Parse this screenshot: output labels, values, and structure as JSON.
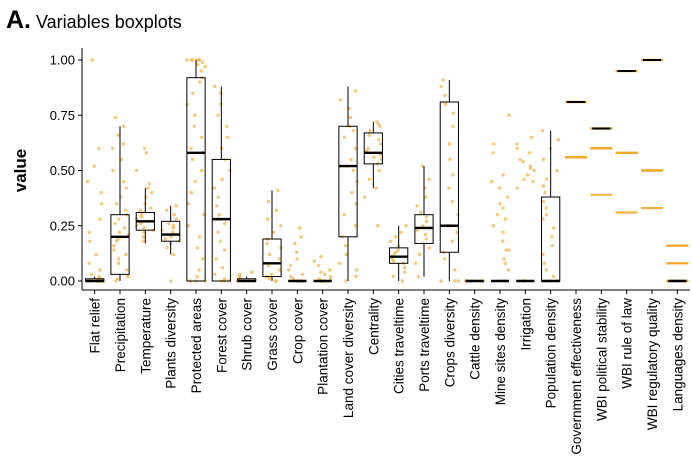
{
  "panel": {
    "letter": "A.",
    "title": "Variables boxplots"
  },
  "colors": {
    "points": "#f5b041",
    "box": "#000000",
    "median": "#000000",
    "constant_line": "#f5a623"
  },
  "chart_data": {
    "type": "boxplot",
    "title": "",
    "ylabel": "value",
    "xlabel": "",
    "ylim": [
      0,
      1
    ],
    "yticks": [
      0.0,
      0.25,
      0.5,
      0.75,
      1.0
    ],
    "ytick_labels": [
      "0.00",
      "0.25",
      "0.50",
      "0.75",
      "1.00"
    ],
    "grid": false,
    "legend": "none",
    "categories": [
      "Flat relief",
      "Precipitation",
      "Temperature",
      "Plants diversity",
      "Protected areas",
      "Forest cover",
      "Shrub cover",
      "Grass cover",
      "Crop cover",
      "Plantation cover",
      "Land cover diversity",
      "Centrality",
      "Cities traveltime",
      "Ports traveltime",
      "Crops diversity",
      "Cattle density",
      "Mine sites density",
      "Irrigation",
      "Population density",
      "Government effectiveness",
      "WBI political stability",
      "WBI rule of law",
      "WBI regulatory quality",
      "Languages density"
    ],
    "boxes": [
      {
        "q1": 0.0,
        "median": 0.0,
        "q3": 0.01,
        "lower": 0.0,
        "upper": 0.02
      },
      {
        "q1": 0.03,
        "median": 0.2,
        "q3": 0.3,
        "lower": 0.0,
        "upper": 0.7
      },
      {
        "q1": 0.23,
        "median": 0.27,
        "q3": 0.31,
        "lower": 0.17,
        "upper": 0.42
      },
      {
        "q1": 0.18,
        "median": 0.21,
        "q3": 0.27,
        "lower": 0.12,
        "upper": 0.34
      },
      {
        "q1": 0.0,
        "median": 0.58,
        "q3": 0.92,
        "lower": 0.0,
        "upper": 1.0
      },
      {
        "q1": 0.0,
        "median": 0.28,
        "q3": 0.55,
        "lower": 0.0,
        "upper": 0.88
      },
      {
        "q1": 0.0,
        "median": 0.0,
        "q3": 0.01,
        "lower": 0.0,
        "upper": 0.02
      },
      {
        "q1": 0.02,
        "median": 0.08,
        "q3": 0.19,
        "lower": 0.0,
        "upper": 0.41
      },
      {
        "q1": 0.0,
        "median": 0.0,
        "q3": 0.0,
        "lower": 0.0,
        "upper": 0.0
      },
      {
        "q1": 0.0,
        "median": 0.0,
        "q3": 0.0,
        "lower": 0.0,
        "upper": 0.0
      },
      {
        "q1": 0.2,
        "median": 0.52,
        "q3": 0.7,
        "lower": 0.0,
        "upper": 0.88
      },
      {
        "q1": 0.53,
        "median": 0.58,
        "q3": 0.67,
        "lower": 0.42,
        "upper": 0.72
      },
      {
        "q1": 0.08,
        "median": 0.11,
        "q3": 0.15,
        "lower": 0.0,
        "upper": 0.25
      },
      {
        "q1": 0.17,
        "median": 0.24,
        "q3": 0.3,
        "lower": 0.02,
        "upper": 0.52
      },
      {
        "q1": 0.13,
        "median": 0.25,
        "q3": 0.81,
        "lower": 0.0,
        "upper": 0.91
      },
      {
        "q1": 0.0,
        "median": 0.0,
        "q3": 0.0,
        "lower": 0.0,
        "upper": 0.0
      },
      {
        "q1": 0.0,
        "median": 0.0,
        "q3": 0.0,
        "lower": 0.0,
        "upper": 0.0
      },
      {
        "q1": 0.0,
        "median": 0.0,
        "q3": 0.0,
        "lower": 0.0,
        "upper": 0.0
      },
      {
        "q1": 0.0,
        "median": 0.0,
        "q3": 0.38,
        "lower": 0.0,
        "upper": 0.68
      },
      {
        "q1": 0.81,
        "median": 0.81,
        "q3": 0.81,
        "lower": 0.81,
        "upper": 0.81
      },
      {
        "q1": 0.69,
        "median": 0.69,
        "q3": 0.69,
        "lower": 0.69,
        "upper": 0.69
      },
      {
        "q1": 0.95,
        "median": 0.95,
        "q3": 0.95,
        "lower": 0.95,
        "upper": 0.95
      },
      {
        "q1": 1.0,
        "median": 1.0,
        "q3": 1.0,
        "lower": 1.0,
        "upper": 1.0
      },
      {
        "q1": 0.0,
        "median": 0.0,
        "q3": 0.0,
        "lower": 0.0,
        "upper": 0.0
      }
    ],
    "points": [
      [
        0.0,
        0.0,
        0.0,
        0.0,
        0.0,
        0.0,
        0.0,
        0.0,
        0.01,
        0.01,
        0.02,
        0.03,
        0.05,
        0.08,
        0.12,
        0.18,
        0.22,
        0.28,
        0.35,
        0.4,
        0.45,
        0.52,
        0.6,
        1.0
      ],
      [
        0.0,
        0.01,
        0.02,
        0.05,
        0.08,
        0.1,
        0.12,
        0.14,
        0.16,
        0.18,
        0.19,
        0.2,
        0.21,
        0.22,
        0.24,
        0.26,
        0.28,
        0.3,
        0.32,
        0.35,
        0.38,
        0.42,
        0.45,
        0.5,
        0.55,
        0.6,
        0.62,
        0.66,
        0.7,
        0.74
      ],
      [
        0.18,
        0.2,
        0.22,
        0.23,
        0.24,
        0.25,
        0.26,
        0.27,
        0.27,
        0.28,
        0.29,
        0.3,
        0.31,
        0.32,
        0.33,
        0.35,
        0.38,
        0.4,
        0.42,
        0.44,
        0.5,
        0.58,
        0.6
      ],
      [
        0.0,
        0.12,
        0.15,
        0.17,
        0.18,
        0.19,
        0.2,
        0.21,
        0.22,
        0.23,
        0.24,
        0.25,
        0.26,
        0.28,
        0.3,
        0.32,
        0.34
      ],
      [
        0.0,
        0.0,
        0.0,
        0.02,
        0.05,
        0.1,
        0.15,
        0.2,
        0.25,
        0.3,
        0.35,
        0.4,
        0.45,
        0.5,
        0.55,
        0.58,
        0.6,
        0.65,
        0.7,
        0.75,
        0.8,
        0.85,
        0.9,
        0.92,
        0.95,
        0.97,
        0.98,
        0.99,
        1.0,
        1.0,
        1.0,
        1.0,
        1.0,
        1.0,
        1.0
      ],
      [
        0.0,
        0.0,
        0.0,
        0.01,
        0.03,
        0.06,
        0.1,
        0.14,
        0.18,
        0.22,
        0.26,
        0.28,
        0.3,
        0.34,
        0.38,
        0.42,
        0.46,
        0.5,
        0.55,
        0.6,
        0.65,
        0.7,
        0.75,
        0.8,
        0.85,
        0.88
      ],
      [
        0.0,
        0.0,
        0.0,
        0.0,
        0.0,
        0.01,
        0.01,
        0.02,
        0.03,
        0.04
      ],
      [
        0.0,
        0.0,
        0.01,
        0.02,
        0.03,
        0.05,
        0.07,
        0.08,
        0.1,
        0.12,
        0.15,
        0.17,
        0.19,
        0.22,
        0.25,
        0.28,
        0.32,
        0.36,
        0.41
      ],
      [
        0.0,
        0.0,
        0.0,
        0.0,
        0.0,
        0.0,
        0.01,
        0.02,
        0.03,
        0.05,
        0.07,
        0.1,
        0.13,
        0.17,
        0.2,
        0.24
      ],
      [
        0.0,
        0.0,
        0.0,
        0.0,
        0.0,
        0.01,
        0.01,
        0.02,
        0.03,
        0.04,
        0.05,
        0.07,
        0.09,
        0.11
      ],
      [
        0.0,
        0.02,
        0.05,
        0.08,
        0.12,
        0.16,
        0.2,
        0.25,
        0.3,
        0.35,
        0.4,
        0.45,
        0.5,
        0.52,
        0.55,
        0.6,
        0.65,
        0.68,
        0.7,
        0.74,
        0.78,
        0.82,
        0.86
      ],
      [
        0.25,
        0.38,
        0.42,
        0.46,
        0.5,
        0.53,
        0.55,
        0.56,
        0.57,
        0.58,
        0.59,
        0.6,
        0.62,
        0.64,
        0.66,
        0.68,
        0.7,
        0.71,
        0.72
      ],
      [
        0.0,
        0.02,
        0.04,
        0.06,
        0.08,
        0.09,
        0.1,
        0.11,
        0.12,
        0.13,
        0.14,
        0.16,
        0.18,
        0.2,
        0.22,
        0.25
      ],
      [
        0.02,
        0.08,
        0.12,
        0.15,
        0.17,
        0.19,
        0.21,
        0.23,
        0.24,
        0.25,
        0.27,
        0.29,
        0.31,
        0.34,
        0.38,
        0.42,
        0.46,
        0.52
      ],
      [
        0.0,
        0.0,
        0.0,
        0.05,
        0.1,
        0.13,
        0.18,
        0.22,
        0.25,
        0.25,
        0.3,
        0.36,
        0.42,
        0.48,
        0.55,
        0.62,
        0.7,
        0.76,
        0.8,
        0.84,
        0.88,
        0.91
      ],
      [
        0.0,
        0.0,
        0.0,
        0.0,
        0.0,
        0.0
      ],
      [
        0.0,
        0.0,
        0.05,
        0.08,
        0.1,
        0.14,
        0.14,
        0.18,
        0.22,
        0.25,
        0.28,
        0.3,
        0.33,
        0.35,
        0.38,
        0.42,
        0.45,
        0.48,
        0.58,
        0.62,
        0.75
      ],
      [
        0.0,
        0.0,
        0.42,
        0.45,
        0.46,
        0.48,
        0.5,
        0.51,
        0.52,
        0.54,
        0.55,
        0.58,
        0.6,
        0.62,
        0.65
      ],
      [
        0.0,
        0.0,
        0.02,
        0.05,
        0.08,
        0.12,
        0.16,
        0.2,
        0.24,
        0.28,
        0.3,
        0.33,
        0.36,
        0.4,
        0.43,
        0.46,
        0.5,
        0.55,
        0.6,
        0.64,
        0.68
      ],
      [
        0.56,
        0.56,
        0.56,
        0.56,
        0.81,
        0.81
      ],
      [
        0.6,
        0.6,
        0.6,
        0.39,
        0.69,
        0.69
      ],
      [
        0.58,
        0.58,
        0.58,
        0.31,
        0.95,
        0.95
      ],
      [
        0.5,
        0.5,
        0.5,
        0.33,
        1.0,
        1.0
      ],
      [
        0.0,
        0.0,
        0.0,
        0.08,
        0.08,
        0.16,
        0.16
      ]
    ]
  }
}
